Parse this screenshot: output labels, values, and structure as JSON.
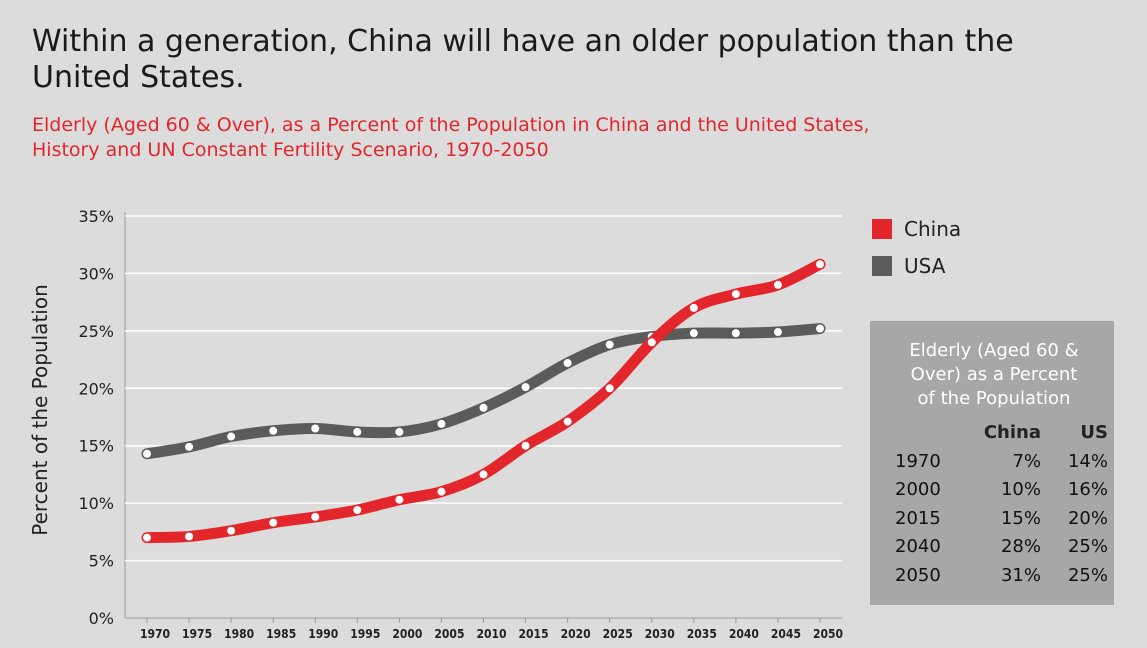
{
  "header": {
    "title": "Within a generation, China will have an older population than the United States.",
    "subtitle_line1": "Elderly (Aged 60 & Over), as a Percent of the Population in China and the United States,",
    "subtitle_line2": "History and UN Constant Fertility Scenario, 1970-2050"
  },
  "colors": {
    "china": "#e3262b",
    "usa": "#5b5b5b",
    "background": "#dcdcdc",
    "box": "#a7a7a9"
  },
  "chart_data": {
    "type": "line",
    "title": "Within a generation, China will have an older population than the United States.",
    "ylabel": "Percent of the Population",
    "xlabel": "",
    "ylim": [
      0,
      35
    ],
    "yticks": [
      "0%",
      "5%",
      "10%",
      "15%",
      "20%",
      "25%",
      "30%",
      "35%"
    ],
    "x": [
      1970,
      1975,
      1980,
      1985,
      1990,
      1995,
      2000,
      2005,
      2010,
      2015,
      2020,
      2025,
      2030,
      2035,
      2040,
      2045,
      2050
    ],
    "series": [
      {
        "name": "China",
        "values": [
          7.0,
          7.1,
          7.6,
          8.3,
          8.8,
          9.4,
          10.3,
          11.0,
          12.5,
          15.0,
          17.1,
          20.0,
          24.0,
          27.0,
          28.2,
          29.0,
          30.8
        ]
      },
      {
        "name": "USA",
        "values": [
          14.3,
          14.9,
          15.8,
          16.3,
          16.5,
          16.2,
          16.2,
          16.9,
          18.3,
          20.1,
          22.2,
          23.8,
          24.5,
          24.8,
          24.8,
          24.9,
          25.2
        ]
      }
    ],
    "legend": [
      "China",
      "USA"
    ],
    "grid": true
  },
  "legend": {
    "china": "China",
    "usa": "USA"
  },
  "table": {
    "title_line1": "Elderly (Aged 60 &",
    "title_line2": "Over) as a Percent",
    "title_line3": "of the Population",
    "col_year": "",
    "col_china": "China",
    "col_us": "US",
    "rows": [
      {
        "year": "1970",
        "china": "7%",
        "us": "14%"
      },
      {
        "year": "2000",
        "china": "10%",
        "us": "16%"
      },
      {
        "year": "2015",
        "china": "15%",
        "us": "20%"
      },
      {
        "year": "2040",
        "china": "28%",
        "us": "25%"
      },
      {
        "year": "2050",
        "china": "31%",
        "us": "25%"
      }
    ]
  }
}
